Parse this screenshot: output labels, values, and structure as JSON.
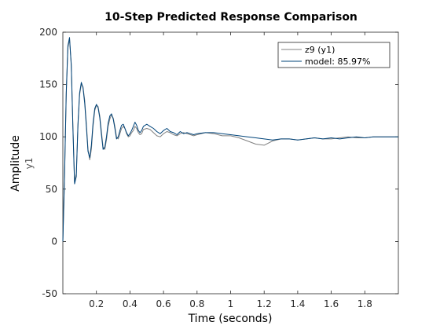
{
  "chart_data": {
    "type": "line",
    "title": "10-Step Predicted Response Comparison",
    "xlabel": "Time (seconds)",
    "ylabel": "Amplitude",
    "ylabel_secondary": "y1",
    "xlim": [
      0,
      2.0
    ],
    "ylim": [
      -50,
      200
    ],
    "xticks": [
      0.2,
      0.4,
      0.6,
      0.8,
      1.0,
      1.2,
      1.4,
      1.6,
      1.8
    ],
    "xtick_labels": [
      "0.2",
      "0.4",
      "0.6",
      "0.8",
      "1",
      "1.2",
      "1.4",
      "1.6",
      "1.8"
    ],
    "yticks": [
      -50,
      0,
      50,
      100,
      150,
      200
    ],
    "ytick_labels": [
      "-50",
      "0",
      "50",
      "100",
      "150",
      "200"
    ],
    "grid": false,
    "legend_position": "top-right",
    "series": [
      {
        "name": "z9 (y1)",
        "color": "#808080",
        "x": [
          0,
          0.01,
          0.02,
          0.03,
          0.04,
          0.05,
          0.06,
          0.07,
          0.08,
          0.09,
          0.1,
          0.11,
          0.12,
          0.13,
          0.14,
          0.15,
          0.16,
          0.17,
          0.18,
          0.19,
          0.2,
          0.21,
          0.22,
          0.23,
          0.24,
          0.25,
          0.26,
          0.27,
          0.28,
          0.29,
          0.3,
          0.31,
          0.32,
          0.33,
          0.34,
          0.35,
          0.36,
          0.37,
          0.38,
          0.39,
          0.4,
          0.41,
          0.42,
          0.43,
          0.44,
          0.45,
          0.46,
          0.47,
          0.48,
          0.5,
          0.52,
          0.54,
          0.56,
          0.58,
          0.6,
          0.62,
          0.64,
          0.66,
          0.68,
          0.7,
          0.72,
          0.74,
          0.76,
          0.78,
          0.8,
          0.85,
          0.9,
          0.95,
          1.0,
          1.05,
          1.1,
          1.15,
          1.2,
          1.25,
          1.3,
          1.35,
          1.4,
          1.45,
          1.5,
          1.55,
          1.6,
          1.65,
          1.7,
          1.75,
          1.8,
          1.85,
          1.9,
          1.95,
          2.0
        ],
        "y": [
          0,
          60,
          140,
          185,
          193,
          170,
          110,
          57,
          65,
          110,
          140,
          150,
          148,
          135,
          113,
          88,
          78,
          88,
          110,
          125,
          130,
          129,
          120,
          105,
          90,
          88,
          97,
          110,
          117,
          121,
          118,
          110,
          100,
          98,
          103,
          108,
          110,
          108,
          103,
          100,
          101,
          104,
          106,
          110,
          108,
          104,
          102,
          103,
          107,
          108,
          107,
          104,
          101,
          100,
          103,
          105,
          104,
          102,
          101,
          103,
          104,
          103,
          102,
          101,
          102,
          104,
          103,
          101,
          101,
          99,
          96,
          93,
          92,
          96,
          98,
          98,
          97,
          98,
          99,
          98,
          98,
          99,
          100,
          99,
          99,
          100,
          100,
          100,
          100
        ]
      },
      {
        "name": "model: 85.97%",
        "color": "#00447a",
        "x": [
          0,
          0.01,
          0.02,
          0.03,
          0.04,
          0.05,
          0.06,
          0.07,
          0.08,
          0.09,
          0.1,
          0.11,
          0.12,
          0.13,
          0.14,
          0.15,
          0.16,
          0.17,
          0.18,
          0.19,
          0.2,
          0.21,
          0.22,
          0.23,
          0.24,
          0.25,
          0.26,
          0.27,
          0.28,
          0.29,
          0.3,
          0.31,
          0.32,
          0.33,
          0.34,
          0.35,
          0.36,
          0.37,
          0.38,
          0.39,
          0.4,
          0.41,
          0.42,
          0.43,
          0.44,
          0.45,
          0.46,
          0.47,
          0.48,
          0.5,
          0.52,
          0.54,
          0.56,
          0.58,
          0.6,
          0.62,
          0.64,
          0.66,
          0.68,
          0.7,
          0.72,
          0.74,
          0.76,
          0.78,
          0.8,
          0.85,
          0.9,
          0.95,
          1.0,
          1.05,
          1.1,
          1.15,
          1.2,
          1.25,
          1.3,
          1.35,
          1.4,
          1.45,
          1.5,
          1.55,
          1.6,
          1.65,
          1.7,
          1.75,
          1.8,
          1.85,
          1.9,
          1.95,
          2.0
        ],
        "y": [
          0,
          62,
          142,
          187,
          195,
          168,
          108,
          55,
          62,
          112,
          142,
          152,
          147,
          132,
          110,
          86,
          80,
          92,
          113,
          127,
          131,
          128,
          118,
          102,
          88,
          90,
          100,
          113,
          120,
          122,
          117,
          108,
          98,
          100,
          106,
          111,
          112,
          108,
          104,
          101,
          103,
          106,
          110,
          114,
          111,
          106,
          104,
          106,
          110,
          112,
          110,
          108,
          105,
          103,
          106,
          108,
          105,
          104,
          102,
          105,
          103,
          104,
          103,
          102,
          103,
          104,
          104,
          103,
          102,
          101,
          100,
          99,
          98,
          97,
          98,
          98,
          97,
          98,
          99,
          98,
          99,
          98,
          99,
          100,
          99,
          100,
          100,
          100,
          100
        ]
      }
    ]
  }
}
